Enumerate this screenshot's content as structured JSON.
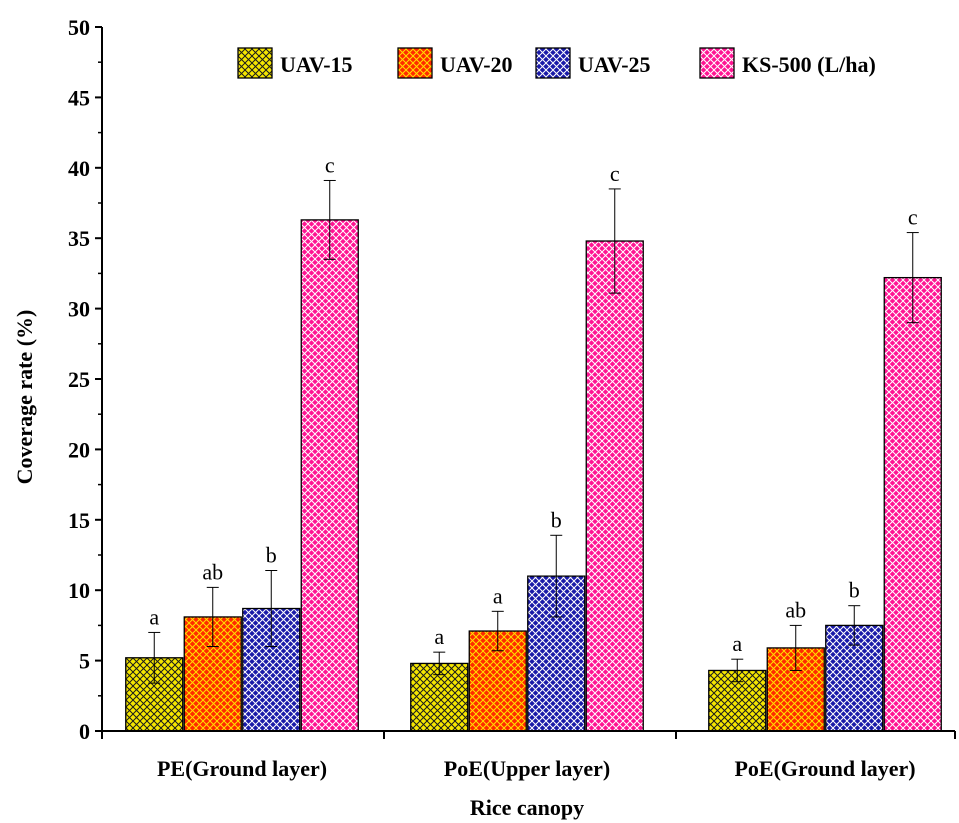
{
  "chart_data": {
    "type": "bar",
    "title": "",
    "xlabel": "Rice canopy",
    "ylabel": "Coverage rate (%)",
    "ylim": [
      0,
      50
    ],
    "yticks": [
      "0",
      "5",
      "10",
      "15",
      "20",
      "25",
      "30",
      "35",
      "40",
      "45",
      "50"
    ],
    "categories": [
      "PE(Ground layer)",
      "PoE(Upper layer)",
      "PoE(Ground layer)"
    ],
    "legend_position": "top-right",
    "series": [
      {
        "name": "UAV-15",
        "color": "#f5e600",
        "pattern_line": "#1c1c1c",
        "values": [
          5.2,
          4.8,
          4.3
        ],
        "errors": [
          1.8,
          0.8,
          0.8
        ],
        "significance": [
          "a",
          "a",
          "a"
        ]
      },
      {
        "name": "UAV-20",
        "color": "#ff2a00",
        "pattern_line": "#ffe000",
        "values": [
          8.1,
          7.1,
          5.9
        ],
        "errors": [
          2.1,
          1.4,
          1.6
        ],
        "significance": [
          "ab",
          "a",
          "ab"
        ]
      },
      {
        "name": "UAV-25",
        "color": "#1a1aa8",
        "pattern_line": "#ffffff",
        "values": [
          8.7,
          11.0,
          7.5
        ],
        "errors": [
          2.7,
          2.9,
          1.4
        ],
        "significance": [
          "b",
          "b",
          "b"
        ]
      },
      {
        "name": "KS-500 (L/ha)",
        "color": "#ff1493",
        "pattern_line": "#ffffff",
        "values": [
          36.3,
          34.8,
          32.2
        ],
        "errors": [
          2.8,
          3.7,
          3.2
        ],
        "significance": [
          "c",
          "c",
          "c"
        ]
      }
    ]
  }
}
